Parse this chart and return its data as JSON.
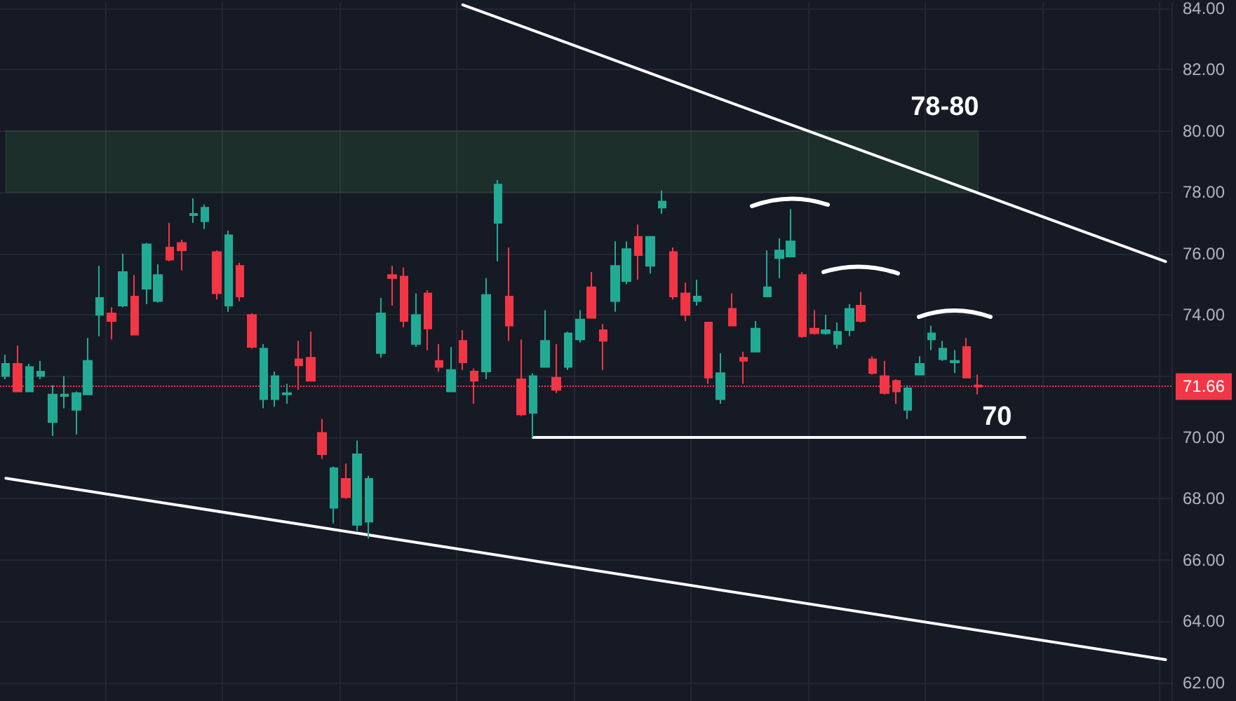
{
  "chart_data": {
    "type": "candlestick",
    "categories": [
      null,
      null,
      null,
      null,
      null,
      null,
      null,
      null,
      null,
      null,
      null,
      null,
      null,
      null,
      null,
      null,
      null,
      null,
      null,
      null,
      null,
      null,
      null,
      null,
      null,
      null,
      null,
      null,
      null,
      null,
      null,
      null,
      null,
      null,
      null,
      null,
      null,
      null,
      null,
      null,
      null,
      null,
      null,
      null,
      null,
      null,
      null,
      null,
      null,
      null,
      null,
      null,
      null,
      null,
      null,
      null,
      null,
      null,
      null,
      null,
      null,
      null,
      null,
      null,
      null,
      null,
      null,
      null,
      null,
      null,
      null,
      null,
      null,
      null,
      null,
      null,
      null,
      null,
      null,
      null,
      null,
      null,
      null,
      null,
      null,
      null,
      null,
      null,
      null,
      null,
      null,
      null,
      null,
      null,
      null,
      null,
      null,
      null,
      null,
      null
    ],
    "ohlc": [
      [
        72.0,
        72.7,
        71.9,
        72.4
      ],
      [
        72.4,
        73.0,
        71.5,
        71.5
      ],
      [
        71.5,
        72.4,
        71.5,
        72.3
      ],
      [
        72.0,
        72.5,
        71.9,
        72.15
      ],
      [
        70.5,
        71.7,
        70.05,
        71.4
      ],
      [
        71.35,
        72.0,
        70.95,
        71.4
      ],
      [
        70.9,
        71.5,
        70.1,
        71.45
      ],
      [
        71.4,
        73.25,
        71.4,
        72.5
      ],
      [
        74.0,
        75.6,
        73.3,
        74.55
      ],
      [
        74.05,
        74.25,
        73.2,
        73.8
      ],
      [
        74.3,
        76.0,
        74.25,
        75.4
      ],
      [
        74.6,
        75.3,
        73.35,
        73.35
      ],
      [
        74.85,
        76.35,
        74.35,
        76.3
      ],
      [
        74.45,
        75.65,
        74.4,
        75.3
      ],
      [
        76.2,
        77.0,
        75.75,
        75.8
      ],
      [
        76.35,
        76.45,
        75.45,
        76.1
      ],
      [
        77.25,
        77.8,
        77.0,
        77.3
      ],
      [
        77.05,
        77.6,
        76.8,
        77.5
      ],
      [
        76.05,
        76.1,
        74.5,
        74.7
      ],
      [
        74.3,
        76.75,
        74.1,
        76.6
      ],
      [
        75.6,
        75.7,
        74.45,
        74.6
      ],
      [
        74.0,
        74.05,
        72.9,
        72.95
      ],
      [
        71.25,
        73.05,
        70.95,
        72.9
      ],
      [
        71.25,
        72.15,
        71.0,
        72.0
      ],
      [
        71.4,
        71.75,
        71.1,
        71.45
      ],
      [
        72.55,
        73.15,
        71.55,
        72.35
      ],
      [
        72.6,
        73.45,
        71.85,
        71.85
      ],
      [
        70.15,
        70.6,
        69.3,
        69.45
      ],
      [
        67.7,
        69.05,
        67.2,
        69.0
      ],
      [
        68.65,
        69.15,
        68.0,
        68.05
      ],
      [
        67.15,
        69.9,
        66.95,
        69.45
      ],
      [
        67.25,
        68.75,
        66.7,
        68.65
      ],
      [
        72.75,
        74.55,
        72.6,
        74.05
      ],
      [
        75.3,
        75.6,
        74.3,
        75.2
      ],
      [
        75.25,
        75.55,
        73.6,
        73.8
      ],
      [
        73.05,
        74.7,
        72.95,
        74.0
      ],
      [
        74.7,
        74.8,
        72.85,
        73.55
      ],
      [
        72.5,
        73.05,
        72.15,
        72.3
      ],
      [
        71.5,
        72.95,
        71.5,
        72.2
      ],
      [
        73.15,
        73.5,
        72.2,
        72.45
      ],
      [
        72.15,
        72.25,
        71.1,
        71.85
      ],
      [
        72.15,
        75.2,
        71.9,
        74.65
      ],
      [
        77.0,
        78.4,
        75.75,
        78.25
      ],
      [
        74.6,
        76.2,
        73.15,
        73.65
      ],
      [
        71.9,
        73.2,
        70.7,
        70.75
      ],
      [
        70.8,
        72.1,
        70.0,
        72.0
      ],
      [
        72.3,
        74.15,
        72.3,
        73.15
      ],
      [
        71.95,
        73.05,
        71.45,
        71.55
      ],
      [
        72.3,
        73.45,
        72.2,
        73.4
      ],
      [
        73.2,
        74.15,
        73.1,
        73.85
      ],
      [
        74.9,
        75.4,
        73.9,
        73.9
      ],
      [
        73.5,
        73.7,
        72.2,
        73.15
      ],
      [
        74.45,
        76.4,
        74.1,
        75.6
      ],
      [
        75.1,
        76.4,
        75.0,
        76.15
      ],
      [
        76.55,
        76.95,
        75.15,
        75.95
      ],
      [
        75.6,
        76.55,
        75.35,
        76.55
      ],
      [
        77.5,
        78.05,
        77.3,
        77.7
      ],
      [
        76.05,
        76.2,
        74.5,
        74.6
      ],
      [
        74.7,
        75.05,
        73.8,
        74.0
      ],
      [
        74.45,
        75.15,
        74.3,
        74.6
      ],
      [
        73.75,
        73.75,
        71.75,
        71.95
      ],
      [
        71.25,
        72.75,
        71.1,
        72.1
      ],
      [
        74.2,
        74.7,
        73.65,
        73.65
      ],
      [
        72.6,
        72.8,
        71.75,
        72.5
      ],
      [
        72.8,
        73.8,
        72.8,
        73.55
      ],
      [
        74.6,
        76.1,
        74.6,
        74.9
      ],
      [
        75.85,
        76.5,
        75.2,
        76.1
      ],
      [
        75.9,
        77.45,
        75.9,
        76.4
      ],
      [
        75.3,
        75.4,
        73.25,
        73.3
      ],
      [
        73.55,
        74.15,
        73.35,
        73.4
      ],
      [
        73.4,
        74.0,
        73.35,
        73.5
      ],
      [
        73.05,
        73.75,
        72.9,
        73.45
      ],
      [
        73.5,
        74.35,
        73.3,
        74.2
      ],
      [
        74.3,
        74.75,
        73.75,
        73.8
      ],
      [
        72.55,
        72.65,
        72.05,
        72.1
      ],
      [
        72.0,
        72.5,
        71.4,
        71.45
      ],
      [
        71.85,
        71.9,
        71.1,
        71.5
      ],
      [
        70.9,
        71.7,
        70.6,
        71.6
      ],
      [
        72.05,
        72.65,
        72.05,
        72.4
      ],
      [
        73.2,
        73.65,
        72.85,
        73.4
      ],
      [
        72.55,
        73.15,
        72.5,
        72.9
      ],
      [
        72.45,
        72.85,
        72.1,
        72.5
      ],
      [
        72.95,
        73.25,
        71.95,
        71.95
      ],
      [
        71.7,
        72.05,
        71.4,
        71.66
      ],
      null,
      null,
      null,
      null,
      null,
      null,
      null,
      null,
      null,
      null,
      null,
      null,
      null,
      null,
      null,
      null
    ],
    "colors": [
      "#22ab94",
      "#f23645",
      "#22ab94",
      "#22ab94",
      "#22ab94",
      "#22ab94",
      "#22ab94",
      "#22ab94",
      "#22ab94",
      "#f23645",
      "#22ab94",
      "#f23645",
      "#22ab94",
      "#22ab94",
      "#f23645",
      "#f23645",
      "#22ab94",
      "#22ab94",
      "#f23645",
      "#22ab94",
      "#f23645",
      "#f23645",
      "#22ab94",
      "#22ab94",
      "#22ab94",
      "#f23645",
      "#f23645",
      "#f23645",
      "#22ab94",
      "#f23645",
      "#22ab94",
      "#22ab94",
      "#22ab94",
      "#f23645",
      "#f23645",
      "#22ab94",
      "#f23645",
      "#f23645",
      "#22ab94",
      "#f23645",
      "#f23645",
      "#22ab94",
      "#22ab94",
      "#f23645",
      "#f23645",
      "#22ab94",
      "#22ab94",
      "#f23645",
      "#22ab94",
      "#22ab94",
      "#f23645",
      "#f23645",
      "#22ab94",
      "#22ab94",
      "#f23645",
      "#22ab94",
      "#22ab94",
      "#f23645",
      "#f23645",
      "#22ab94",
      "#f23645",
      "#22ab94",
      "#f23645",
      "#f23645",
      "#22ab94",
      "#22ab94",
      "#22ab94",
      "#22ab94",
      "#f23645",
      "#f23645",
      "#22ab94",
      "#22ab94",
      "#22ab94",
      "#f23645",
      "#f23645",
      "#f23645",
      "#f23645",
      "#22ab94",
      "#22ab94",
      "#22ab94",
      "#22ab94",
      "#22ab94",
      "#f23645",
      "#f23645",
      null,
      null,
      null,
      null,
      null,
      null,
      null,
      null,
      null,
      null,
      null,
      null,
      null,
      null,
      null,
      null
    ],
    "series": [
      {
        "type": "line",
        "color": "#ffffff",
        "values": [
          null,
          null,
          null,
          null,
          null,
          null,
          null,
          null,
          null,
          null,
          null,
          null,
          null,
          null,
          null,
          null,
          null,
          null,
          null,
          null,
          null,
          null,
          null,
          null,
          null,
          null,
          null,
          null,
          null,
          null,
          null,
          null,
          null,
          null,
          null,
          null,
          null,
          null,
          null,
          84.12,
          null,
          null,
          null,
          null,
          null,
          null,
          null,
          null,
          null,
          null,
          null,
          null,
          null,
          null,
          null,
          null,
          null,
          null,
          null,
          null,
          null,
          null,
          null,
          null,
          null,
          null,
          null,
          null,
          null,
          null,
          null,
          null,
          null,
          null,
          null,
          null,
          null,
          null,
          null,
          null,
          null,
          null,
          null,
          null,
          null,
          null,
          null,
          null,
          null,
          null,
          null,
          null,
          null,
          null,
          null,
          null,
          null,
          null,
          null,
          75.74
        ]
      },
      {
        "type": "line",
        "color": "#ffffff",
        "values": [
          68.67,
          null,
          null,
          null,
          null,
          null,
          null,
          null,
          null,
          null,
          null,
          null,
          null,
          null,
          null,
          null,
          null,
          null,
          null,
          null,
          null,
          null,
          null,
          null,
          null,
          null,
          null,
          null,
          null,
          null,
          null,
          null,
          null,
          null,
          null,
          null,
          null,
          null,
          null,
          null,
          null,
          null,
          null,
          null,
          null,
          null,
          null,
          null,
          null,
          null,
          null,
          null,
          null,
          null,
          null,
          null,
          null,
          null,
          null,
          null,
          null,
          null,
          null,
          null,
          null,
          null,
          null,
          null,
          null,
          null,
          null,
          null,
          null,
          null,
          null,
          null,
          null,
          null,
          null,
          null,
          null,
          null,
          null,
          null,
          null,
          null,
          null,
          null,
          null,
          null,
          null,
          null,
          null,
          null,
          null,
          null,
          null,
          null,
          null,
          62.75
        ]
      },
      {
        "type": "line",
        "name": "70",
        "color": "#ffffff",
        "values": [
          null,
          null,
          null,
          null,
          null,
          null,
          null,
          null,
          null,
          null,
          null,
          null,
          null,
          null,
          null,
          null,
          null,
          null,
          null,
          null,
          null,
          null,
          null,
          null,
          null,
          null,
          null,
          null,
          null,
          null,
          null,
          null,
          null,
          null,
          null,
          null,
          null,
          null,
          null,
          null,
          null,
          null,
          null,
          null,
          null,
          70,
          null,
          null,
          null,
          null,
          null,
          null,
          null,
          null,
          null,
          null,
          null,
          null,
          null,
          null,
          null,
          null,
          null,
          null,
          null,
          null,
          null,
          null,
          null,
          null,
          null,
          null,
          null,
          null,
          null,
          null,
          null,
          null,
          null,
          null,
          null,
          null,
          null,
          null,
          null,
          null,
          null,
          70,
          null,
          null,
          null,
          null,
          null,
          null,
          null,
          null,
          null,
          null,
          null,
          null
        ]
      }
    ],
    "bands": [
      {
        "axis": "y",
        "from": 78,
        "to": 80,
        "label": "78-80",
        "color": "#4caf50"
      }
    ],
    "ref_lines": [
      {
        "axis": "y",
        "value": 71.66,
        "label": "71.66",
        "color": "#f23645",
        "line_style": "dotted"
      }
    ],
    "ylim": [
      61.4,
      84.2
    ],
    "yticks": [
      {
        "value": 62,
        "label": "62.00"
      },
      {
        "value": 64,
        "label": "64.00"
      },
      {
        "value": 66,
        "label": "66.00"
      },
      {
        "value": 68,
        "label": "68.00"
      },
      {
        "value": 70,
        "label": "70.00"
      },
      {
        "value": 72,
        "label": null
      },
      {
        "value": 74,
        "label": "74.00"
      },
      {
        "value": 76,
        "label": "76.00"
      },
      {
        "value": 78,
        "label": "78.00"
      },
      {
        "value": 80,
        "label": "80.00"
      },
      {
        "value": 82,
        "label": "82.00"
      },
      {
        "value": 84,
        "label": "84.00"
      }
    ],
    "grid": true,
    "tick_labels": "y"
  }
}
